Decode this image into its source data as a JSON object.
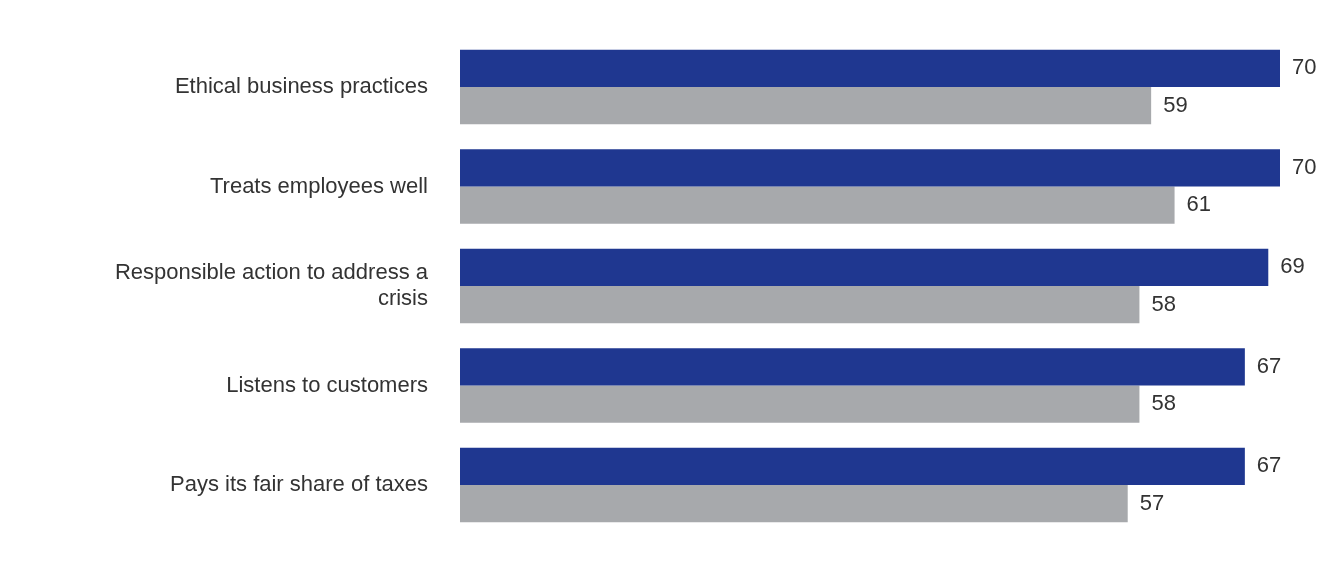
{
  "chart_data": {
    "type": "bar",
    "orientation": "horizontal",
    "categories": [
      "Ethical business practices",
      "Treats employees well",
      "Responsible action to address a crisis",
      "Listens to customers",
      "Pays its fair share of taxes"
    ],
    "series": [
      {
        "color": "#1f3790",
        "values": [
          70,
          70,
          69,
          67,
          67
        ]
      },
      {
        "color": "#a7a9ac",
        "values": [
          59,
          61,
          58,
          58,
          57
        ]
      }
    ],
    "data_labels": true,
    "legend": false
  }
}
